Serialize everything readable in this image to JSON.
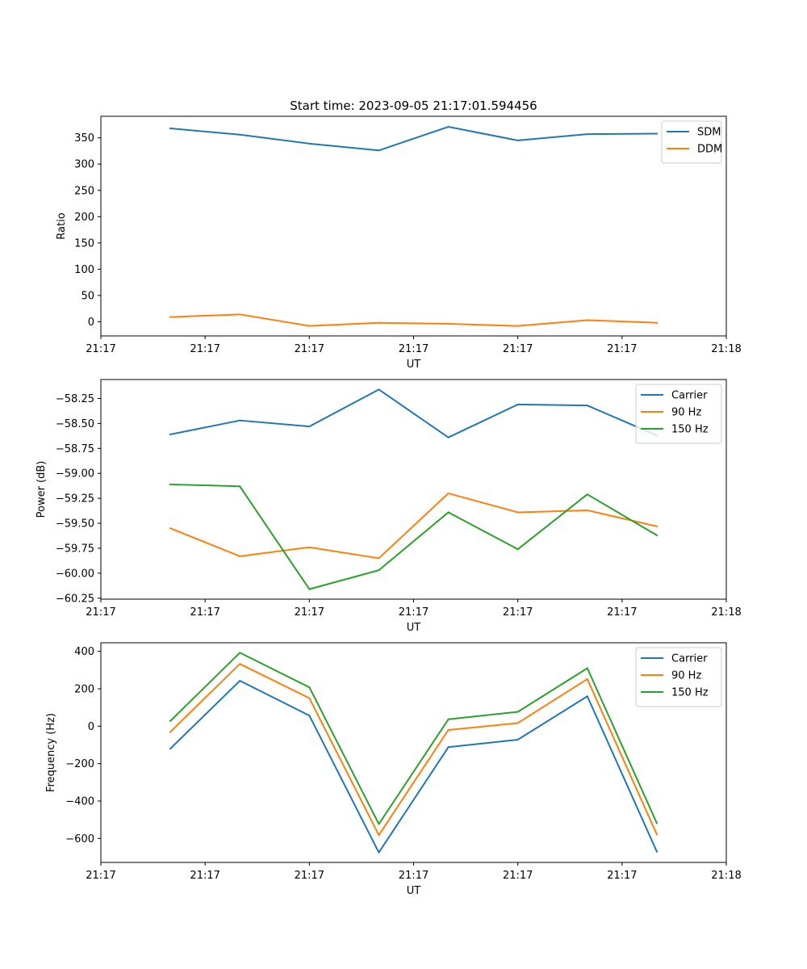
{
  "figure": {
    "title": "Start time: 2023-09-05 21:17:01.594456"
  },
  "chart_data": [
    {
      "type": "line",
      "title": "Start time: 2023-09-05 21:17:01.594456",
      "xlabel": "UT",
      "ylabel": "Ratio",
      "xlim": [
        0,
        9
      ],
      "x": [
        1,
        2,
        3,
        4,
        5,
        6,
        7,
        8
      ],
      "xticks": [
        0,
        1.5,
        3,
        4.5,
        6,
        7.5,
        9
      ],
      "xtick_labels": [
        "21:17",
        "21:17",
        "21:17",
        "21:17",
        "21:17",
        "21:17",
        "21:18"
      ],
      "ylim": [
        -27,
        391
      ],
      "yticks": [
        0,
        50,
        100,
        150,
        200,
        250,
        300,
        350
      ],
      "ytick_labels": [
        "0",
        "50",
        "100",
        "150",
        "200",
        "250",
        "300",
        "350"
      ],
      "legend": "top-right",
      "series": [
        {
          "name": "SDM",
          "color": "#1f77b4",
          "values": [
            368,
            356,
            339,
            326,
            371,
            345,
            357,
            358
          ]
        },
        {
          "name": "DDM",
          "color": "#ff7f0e",
          "values": [
            9,
            14,
            -8,
            -2,
            -4,
            -8,
            3,
            -2
          ]
        }
      ]
    },
    {
      "type": "line",
      "title": "",
      "xlabel": "UT",
      "ylabel": "Power (dB)",
      "xlim": [
        0,
        9
      ],
      "x": [
        1,
        2,
        3,
        4,
        5,
        6,
        7,
        8
      ],
      "xticks": [
        0,
        1.5,
        3,
        4.5,
        6,
        7.5,
        9
      ],
      "xtick_labels": [
        "21:17",
        "21:17",
        "21:17",
        "21:17",
        "21:17",
        "21:17",
        "21:18"
      ],
      "ylim": [
        -60.26,
        -58.06
      ],
      "yticks": [
        -60.25,
        -60.0,
        -59.75,
        -59.5,
        -59.25,
        -59.0,
        -58.75,
        -58.5,
        -58.25
      ],
      "ytick_labels": [
        "−60.25",
        "−60.00",
        "−59.75",
        "−59.50",
        "−59.25",
        "−59.00",
        "−58.75",
        "−58.50",
        "−58.25"
      ],
      "legend": "top-right",
      "series": [
        {
          "name": "Carrier",
          "color": "#1f77b4",
          "values": [
            -58.61,
            -58.47,
            -58.53,
            -58.16,
            -58.64,
            -58.31,
            -58.32,
            -58.62
          ]
        },
        {
          "name": "90 Hz",
          "color": "#ff7f0e",
          "values": [
            -59.55,
            -59.83,
            -59.74,
            -59.85,
            -59.2,
            -59.39,
            -59.37,
            -59.53
          ]
        },
        {
          "name": "150 Hz",
          "color": "#2ca02c",
          "values": [
            -59.11,
            -59.13,
            -60.16,
            -59.97,
            -59.39,
            -59.76,
            -59.21,
            -59.62
          ]
        }
      ]
    },
    {
      "type": "line",
      "title": "",
      "xlabel": "UT",
      "ylabel": "Frequency (Hz)",
      "xlim": [
        0,
        9
      ],
      "x": [
        1,
        2,
        3,
        4,
        5,
        6,
        7,
        8
      ],
      "xticks": [
        0,
        1.5,
        3,
        4.5,
        6,
        7.5,
        9
      ],
      "xtick_labels": [
        "21:17",
        "21:17",
        "21:17",
        "21:17",
        "21:17",
        "21:17",
        "21:18"
      ],
      "ylim": [
        -728,
        446
      ],
      "yticks": [
        -600,
        -400,
        -200,
        0,
        200,
        400
      ],
      "ytick_labels": [
        "−600",
        "−400",
        "−200",
        "0",
        "200",
        "400"
      ],
      "legend": "top-right",
      "series": [
        {
          "name": "Carrier",
          "color": "#1f77b4",
          "values": [
            -120,
            243,
            57,
            -675,
            -112,
            -72,
            160,
            -670
          ]
        },
        {
          "name": "90 Hz",
          "color": "#ff7f0e",
          "values": [
            -30,
            333,
            150,
            -582,
            -20,
            17,
            252,
            -578
          ]
        },
        {
          "name": "150 Hz",
          "color": "#2ca02c",
          "values": [
            28,
            393,
            208,
            -523,
            37,
            77,
            310,
            -518
          ]
        }
      ]
    }
  ]
}
